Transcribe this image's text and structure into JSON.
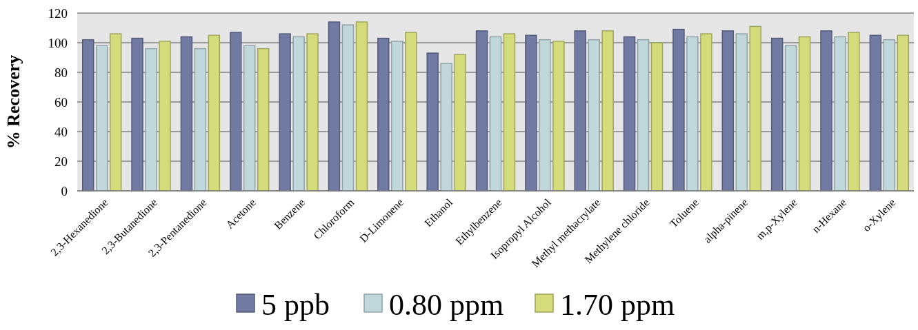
{
  "chart_data": {
    "type": "bar",
    "ylabel": "% Recovery",
    "categories": [
      "2,3-Hexanedione",
      "2,3-Butanedione",
      "2,3-Pentanedione",
      "Acetone",
      "Benzene",
      "Chloroform",
      "D-Limonene",
      "Ethanol",
      "Ethylbenzene",
      "Isopropyl Alcohol",
      "Methyl methacrylate",
      "Methylene chloride",
      "Toluene",
      "alpha-pinene",
      "m,p-Xylene",
      "n-Hexane",
      "o-Xylene"
    ],
    "series": [
      {
        "name": "5 ppb",
        "color": "#717aa3",
        "values": [
          102,
          103,
          104,
          107,
          106,
          114,
          103,
          93,
          108,
          105,
          108,
          104,
          109,
          108,
          103,
          108,
          105
        ]
      },
      {
        "name": "0.80 ppm",
        "color": "#c0d8dc",
        "values": [
          98,
          96,
          96,
          98,
          104,
          112,
          101,
          86,
          104,
          102,
          102,
          102,
          104,
          106,
          98,
          104,
          102
        ]
      },
      {
        "name": "1.70 ppm",
        "color": "#d4db7a",
        "values": [
          106,
          101,
          105,
          96,
          106,
          114,
          107,
          92,
          106,
          101,
          108,
          100,
          106,
          111,
          104,
          107,
          105
        ]
      }
    ],
    "ylim": [
      0,
      120
    ],
    "yticks": [
      0,
      20,
      40,
      60,
      80,
      100,
      120
    ],
    "grid": "y",
    "legend": "bottom"
  }
}
